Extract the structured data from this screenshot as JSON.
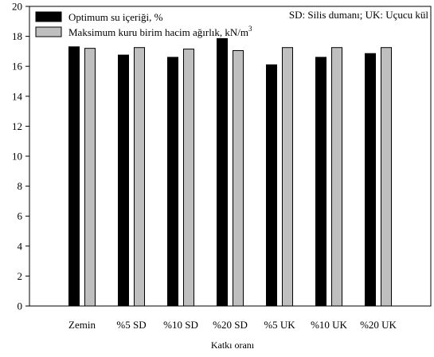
{
  "chart_data": {
    "type": "bar",
    "xlabel": "Katkı oranı",
    "ylabel": "",
    "ylim": [
      0,
      20
    ],
    "yticks": [
      0,
      2,
      4,
      6,
      8,
      10,
      12,
      14,
      16,
      18,
      20
    ],
    "categories": [
      "Zemin",
      "%5 SD",
      "%10 SD",
      "%20 SD",
      "%5 UK",
      "%10 UK",
      "%20 UK"
    ],
    "series": [
      {
        "name": "Optimum su içeriği, %",
        "color": "#000000",
        "values": [
          17.3,
          16.75,
          16.6,
          17.85,
          16.1,
          16.6,
          16.85
        ]
      },
      {
        "name": "Maksimum kuru birim hacim ağırlık, kN/m",
        "name_superscript": "3",
        "color": "#bfbfbf",
        "values": [
          17.2,
          17.25,
          17.15,
          17.05,
          17.25,
          17.25,
          17.25
        ]
      }
    ],
    "annotation": "SD: Silis dumanı; UK: Uçucu kül",
    "legend_position": "top-left",
    "grid": false
  }
}
